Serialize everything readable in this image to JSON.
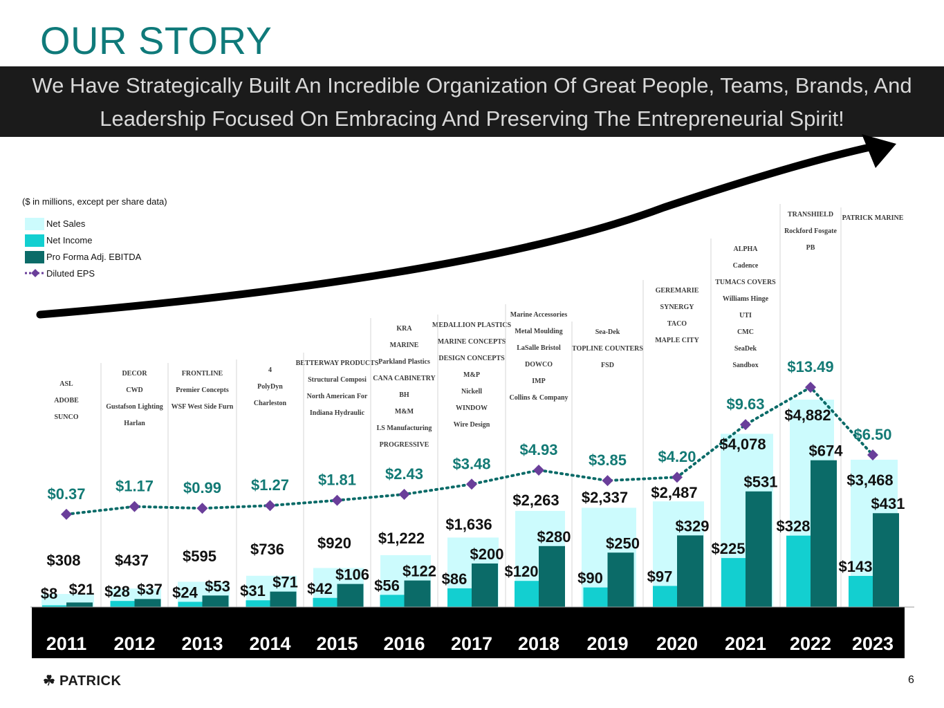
{
  "page": {
    "title": "OUR STORY",
    "banner_line1": "We Have Strategically Built An Incredible Organization Of Great People, Teams, Brands, And",
    "banner_line2": "Leadership Focused On Embracing And Preserving The Entrepreneurial Spirit!",
    "units_note": "($ in millions, except per share data)",
    "brand": "PATRICK",
    "brand_icon": "shamrock-icon",
    "page_number": "6"
  },
  "legend": [
    {
      "label": "Net Sales",
      "color": "#ccfbfd"
    },
    {
      "label": "Net Income",
      "color": "#13cfd0"
    },
    {
      "label": "Pro Forma Adj. EBITDA",
      "color": "#0b6b68"
    },
    {
      "label": "Diluted EPS",
      "color": "#6a3e9a"
    }
  ],
  "acquisition_logos": [
    [
      "ASL",
      "ADOBE",
      "SUNCO"
    ],
    [
      "DECOR",
      "CWD",
      "Gustafson Lighting",
      "Harlan"
    ],
    [
      "FRONTLINE",
      "Premier Concepts",
      "WSF West Side Furniture"
    ],
    [
      "4",
      "PolyDyn",
      "Charleston"
    ],
    [
      "BETTERWAY PRODUCTS",
      "Structural Composites",
      "North American Forest Products",
      "Indiana Hydraulic"
    ],
    [
      "KRA",
      "MARINE",
      "Parkland Plastics",
      "CANA CABINETRY",
      "BH",
      "M&M",
      "LS Manufacturing",
      "PROGRESSIVE"
    ],
    [
      "MEDALLION PLASTICS",
      "MARINE CONCEPTS",
      "DESIGN CONCEPTS",
      "M&P",
      "Nickell",
      "WINDOW",
      "Wire Design"
    ],
    [
      "Marine Accessories Corporation",
      "Metal Moulding",
      "LaSalle Bristol",
      "DOWCO",
      "IMP",
      "Collins & Company"
    ],
    [
      "Sea-Dek",
      "TOPLINE COUNTERS",
      "FSD"
    ],
    [
      "GEREMARIE",
      "SYNERGY",
      "TACO",
      "MAPLE CITY"
    ],
    [
      "ALPHA",
      "Cadence",
      "TUMACS COVERS",
      "Williams Hinge",
      "UTI",
      "CMC",
      "SeaDek",
      "Sandbox"
    ],
    [
      "TRANSHIELD",
      "Rockford Fosgate",
      "PB"
    ],
    [
      "PATRICK MARINE"
    ]
  ],
  "chart_data": {
    "type": "bar",
    "categories": [
      "2011",
      "2012",
      "2013",
      "2014",
      "2015",
      "2016",
      "2017",
      "2018",
      "2019",
      "2020",
      "2021",
      "2022",
      "2023"
    ],
    "series": [
      {
        "name": "Net Sales",
        "values": [
          308,
          437,
          595,
          736,
          920,
          1222,
          1636,
          2263,
          2337,
          2487,
          4078,
          4882,
          3468
        ],
        "labels": [
          "$308",
          "$437",
          "$595",
          "$736",
          "$920",
          "$1,222",
          "$1,636",
          "$2,263",
          "$2,337",
          "$2,487",
          "$4,078",
          "$4,882",
          "$3,468"
        ]
      },
      {
        "name": "Net Income",
        "values": [
          8,
          28,
          24,
          31,
          42,
          56,
          86,
          120,
          90,
          97,
          225,
          328,
          143
        ],
        "labels": [
          "$8",
          "$28",
          "$24",
          "$31",
          "$42",
          "$56",
          "$86",
          "$120",
          "$90",
          "$97",
          "$225",
          "$328",
          "$143"
        ]
      },
      {
        "name": "Pro Forma Adj. EBITDA",
        "values": [
          21,
          37,
          53,
          71,
          106,
          122,
          200,
          280,
          250,
          329,
          531,
          674,
          431
        ],
        "labels": [
          "$21",
          "$37",
          "$53",
          "$71",
          "$106",
          "$122",
          "$200",
          "$280",
          "$250",
          "$329",
          "$531",
          "$674",
          "$431"
        ]
      },
      {
        "name": "Diluted EPS",
        "type": "line",
        "values": [
          0.37,
          1.17,
          0.99,
          1.27,
          1.81,
          2.43,
          3.48,
          4.93,
          3.85,
          4.2,
          9.63,
          13.49,
          6.5
        ],
        "labels": [
          "$0.37",
          "$1.17",
          "$0.99",
          "$1.27",
          "$1.81",
          "$2.43",
          "$3.48",
          "$4.93",
          "$3.85",
          "$4.20",
          "$9.63",
          "$13.49",
          "$6.50"
        ]
      }
    ],
    "legend_position": "top-left"
  }
}
